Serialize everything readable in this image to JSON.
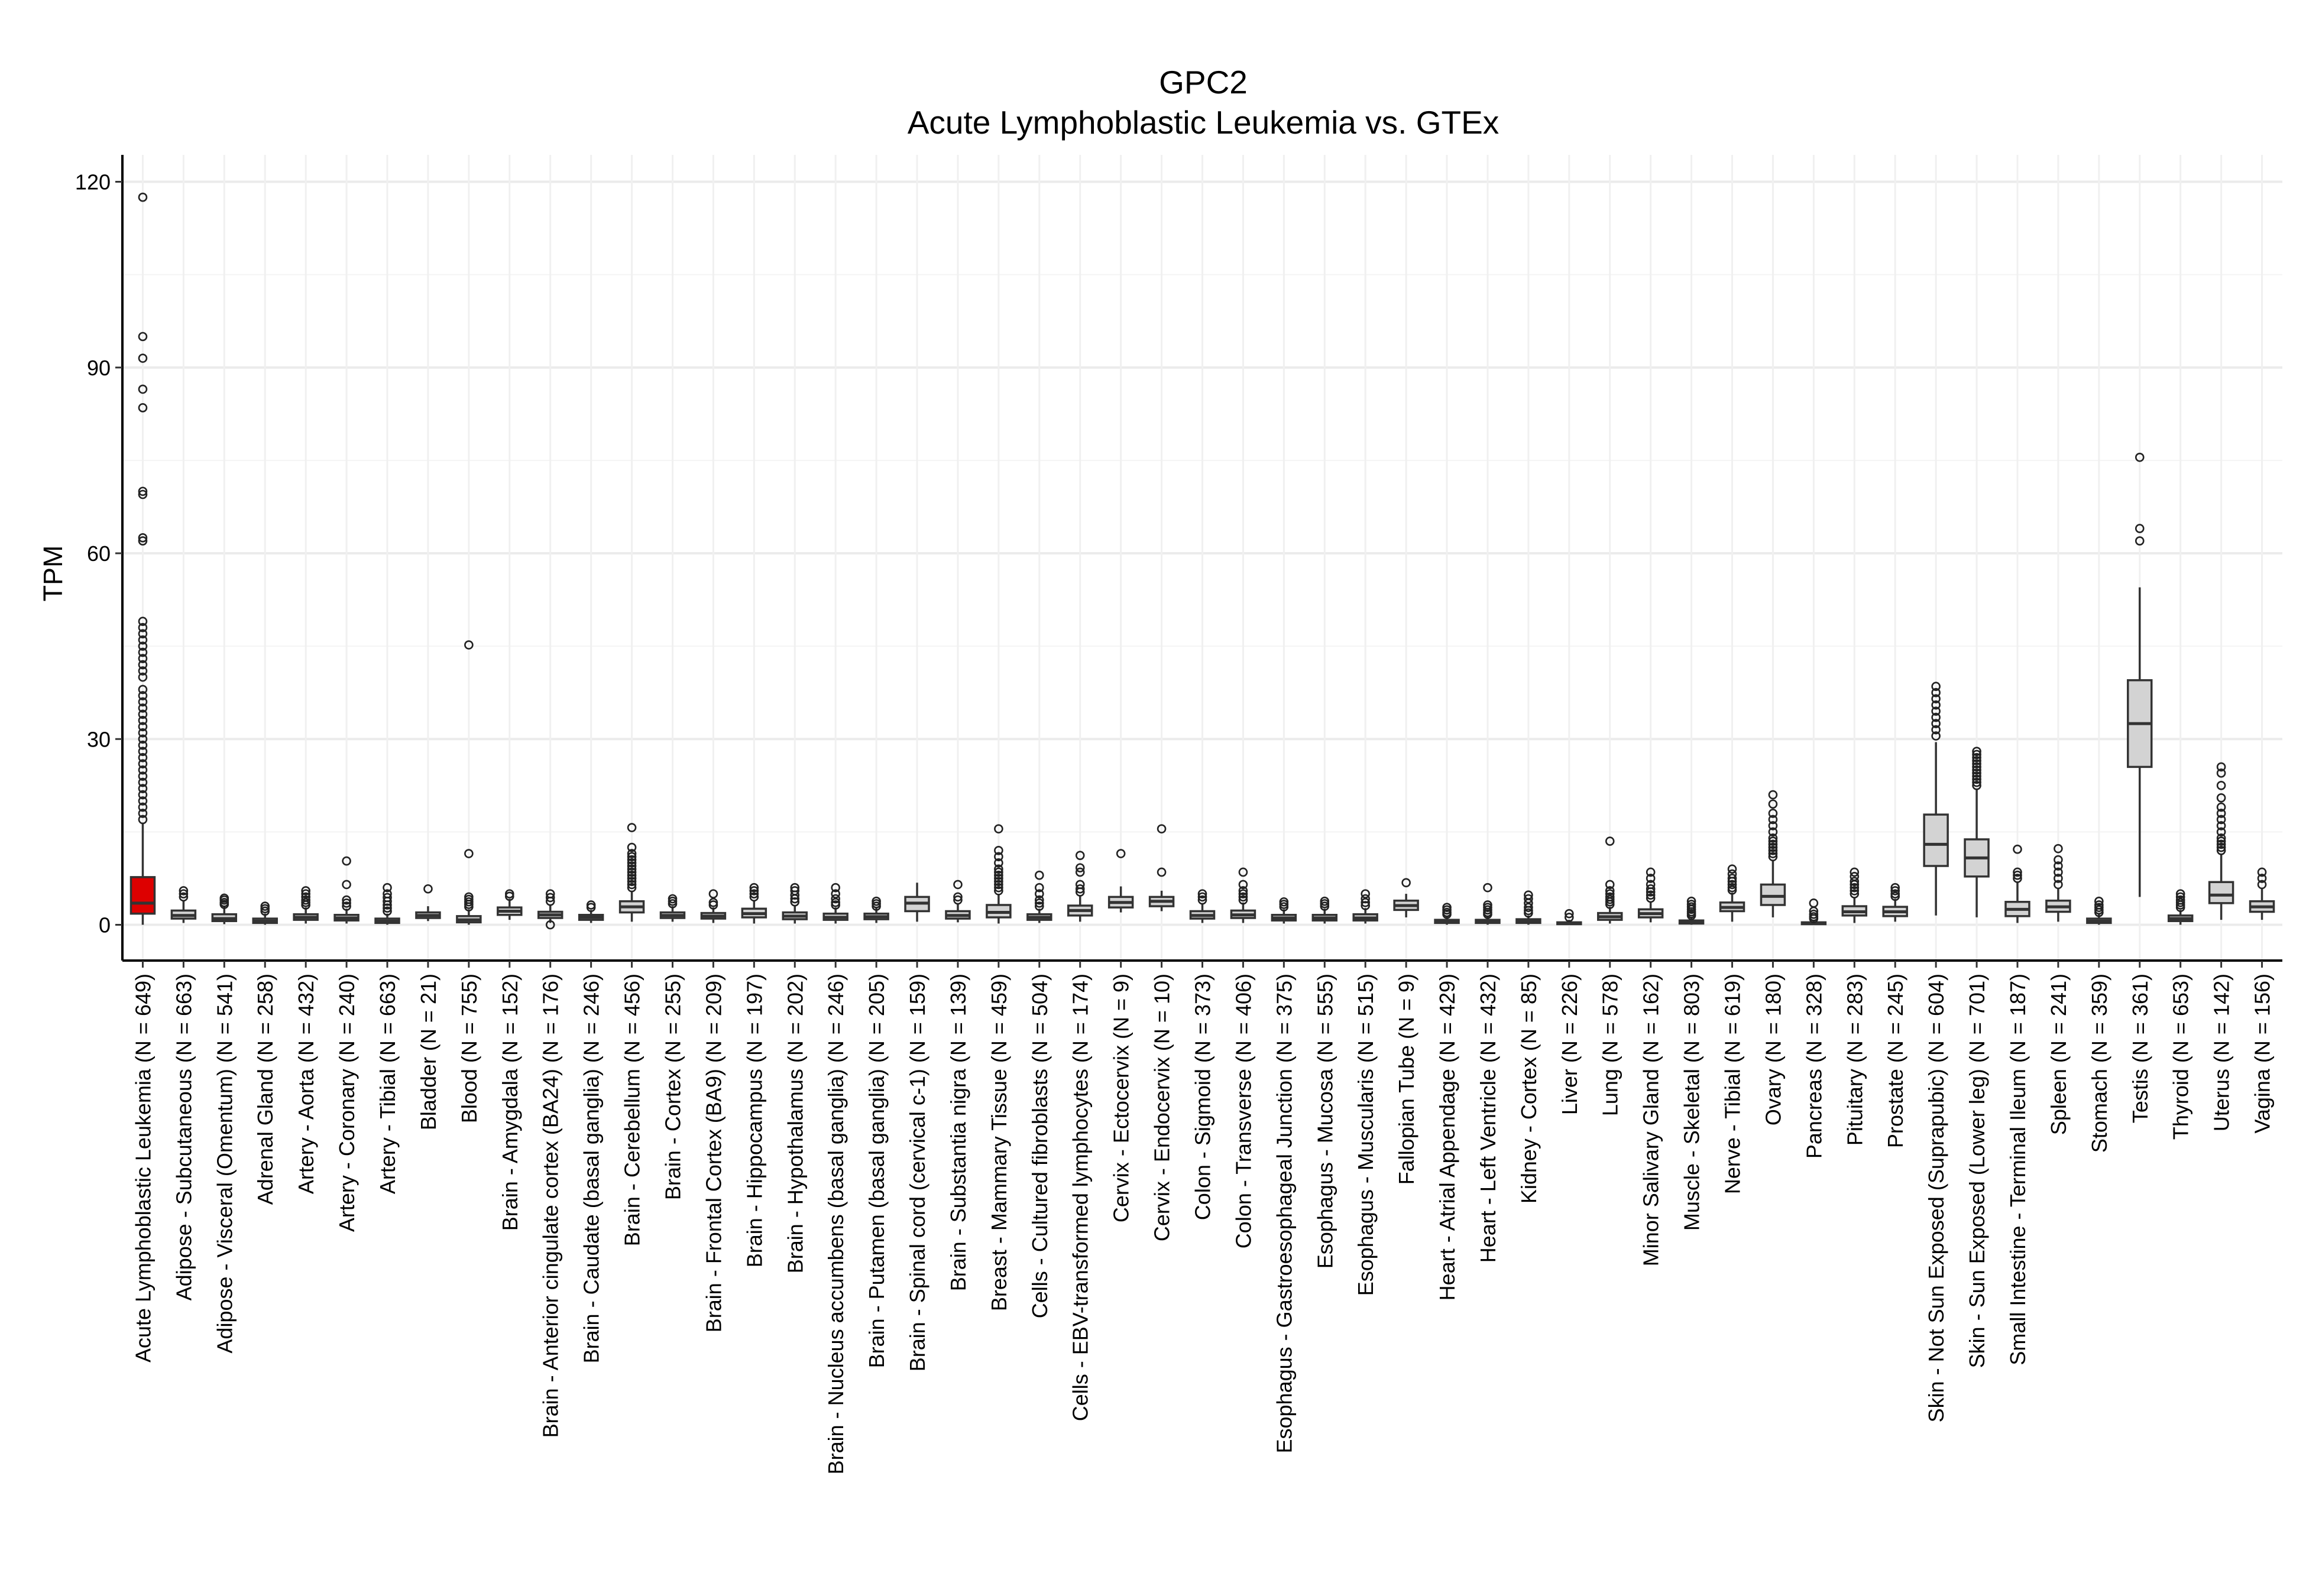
{
  "chart_data": {
    "type": "box",
    "title": "GPC2",
    "subtitle": "Acute Lymphoblastic Leukemia vs. GTEx",
    "ylabel": "TPM",
    "xlabel": "",
    "ylim": [
      -6,
      124
    ],
    "yticks": [
      0,
      30,
      60,
      90,
      120
    ],
    "grid": true,
    "highlight_color": "#dd0000",
    "box_color": "#d3d3d3",
    "categories": [
      "Acute Lymphoblastic Leukemia (N = 649)",
      "Adipose - Subcutaneous (N = 663)",
      "Adipose - Visceral (Omentum) (N = 541)",
      "Adrenal Gland (N = 258)",
      "Artery - Aorta (N = 432)",
      "Artery - Coronary (N = 240)",
      "Artery - Tibial (N = 663)",
      "Bladder (N = 21)",
      "Blood (N = 755)",
      "Brain - Amygdala (N = 152)",
      "Brain - Anterior cingulate cortex (BA24) (N = 176)",
      "Brain - Caudate (basal ganglia) (N = 246)",
      "Brain - Cerebellum (N = 456)",
      "Brain - Cortex (N = 255)",
      "Brain - Frontal Cortex (BA9) (N = 209)",
      "Brain - Hippocampus (N = 197)",
      "Brain - Hypothalamus (N = 202)",
      "Brain - Nucleus accumbens (basal ganglia) (N = 246)",
      "Brain - Putamen (basal ganglia) (N = 205)",
      "Brain - Spinal cord (cervical c-1) (N = 159)",
      "Brain - Substantia nigra (N = 139)",
      "Breast - Mammary Tissue (N = 459)",
      "Cells - Cultured fibroblasts (N = 504)",
      "Cells - EBV-transformed lymphocytes (N = 174)",
      "Cervix - Ectocervix (N = 9)",
      "Cervix - Endocervix (N = 10)",
      "Colon - Sigmoid (N = 373)",
      "Colon - Transverse (N = 406)",
      "Esophagus - Gastroesophageal Junction (N = 375)",
      "Esophagus - Mucosa (N = 555)",
      "Esophagus - Muscularis (N = 515)",
      "Fallopian Tube (N = 9)",
      "Heart - Atrial Appendage (N = 429)",
      "Heart - Left Ventricle (N = 432)",
      "Kidney - Cortex (N = 85)",
      "Liver (N = 226)",
      "Lung (N = 578)",
      "Minor Salivary Gland (N = 162)",
      "Muscle - Skeletal (N = 803)",
      "Nerve - Tibial (N = 619)",
      "Ovary (N = 180)",
      "Pancreas (N = 328)",
      "Pituitary (N = 283)",
      "Prostate (N = 245)",
      "Skin - Not Sun Exposed (Suprapubic) (N = 604)",
      "Skin - Sun Exposed (Lower leg) (N = 701)",
      "Small Intestine - Terminal Ileum (N = 187)",
      "Spleen (N = 241)",
      "Stomach (N = 359)",
      "Testis (N = 361)",
      "Thyroid (N = 653)",
      "Uterus (N = 142)",
      "Vagina (N = 156)"
    ],
    "boxes": [
      {
        "min": 0.0,
        "q1": 1.8,
        "median": 3.5,
        "q3": 7.7,
        "max": 16.5,
        "outliers": [
          17,
          18,
          19,
          20,
          21,
          22,
          23,
          24,
          25,
          26,
          27,
          28,
          29,
          30,
          31,
          32,
          33,
          34,
          35,
          36,
          37,
          38,
          40,
          41,
          42,
          43,
          44,
          45,
          46,
          47,
          48,
          49,
          62,
          62.5,
          69.5,
          70,
          83.5,
          86.5,
          91.5,
          95,
          117.5
        ],
        "highlight": true
      },
      {
        "min": 0.3,
        "q1": 1.0,
        "median": 1.5,
        "q3": 2.3,
        "max": 4.0,
        "outliers": [
          4.5,
          5.0,
          5.5
        ]
      },
      {
        "min": 0.1,
        "q1": 0.6,
        "median": 1.0,
        "q3": 1.7,
        "max": 3.0,
        "outliers": [
          3.3,
          3.6,
          4.0,
          4.3
        ]
      },
      {
        "min": 0.0,
        "q1": 0.3,
        "median": 0.6,
        "q3": 1.0,
        "max": 1.8,
        "outliers": [
          2.2,
          2.6,
          3.0
        ]
      },
      {
        "min": 0.2,
        "q1": 0.8,
        "median": 1.2,
        "q3": 1.7,
        "max": 2.8,
        "outliers": [
          3.2,
          3.6,
          4.0,
          4.5,
          5.0,
          5.5
        ]
      },
      {
        "min": 0.2,
        "q1": 0.7,
        "median": 1.1,
        "q3": 1.6,
        "max": 2.6,
        "outliers": [
          3.0,
          3.5,
          4.0,
          6.5,
          10.3
        ]
      },
      {
        "min": 0.0,
        "q1": 0.3,
        "median": 0.6,
        "q3": 1.0,
        "max": 1.8,
        "outliers": [
          2.2,
          2.7,
          3.2,
          3.8,
          4.4,
          5.0,
          6.0
        ]
      },
      {
        "min": 0.6,
        "q1": 1.1,
        "median": 1.5,
        "q3": 2.0,
        "max": 3.0,
        "outliers": [
          5.8
        ]
      },
      {
        "min": 0.0,
        "q1": 0.4,
        "median": 0.8,
        "q3": 1.4,
        "max": 2.5,
        "outliers": [
          2.9,
          3.3,
          3.7,
          4.1,
          4.5,
          11.5,
          45.2
        ]
      },
      {
        "min": 0.8,
        "q1": 1.6,
        "median": 2.2,
        "q3": 2.8,
        "max": 4.2,
        "outliers": [
          4.6,
          5.0
        ]
      },
      {
        "min": 0.3,
        "q1": 1.1,
        "median": 1.6,
        "q3": 2.1,
        "max": 3.2,
        "outliers": [
          0.0,
          3.8,
          4.4,
          5.0
        ]
      },
      {
        "min": 0.3,
        "q1": 0.8,
        "median": 1.2,
        "q3": 1.6,
        "max": 2.4,
        "outliers": [
          2.8,
          3.2
        ]
      },
      {
        "min": 0.5,
        "q1": 2.0,
        "median": 2.9,
        "q3": 3.8,
        "max": 5.5,
        "outliers": [
          6,
          6.5,
          7,
          7.5,
          8,
          8.5,
          9,
          9.5,
          10,
          10.5,
          11,
          11.5,
          12.5,
          15.7
        ]
      },
      {
        "min": 0.5,
        "q1": 1.1,
        "median": 1.5,
        "q3": 2.0,
        "max": 3.0,
        "outliers": [
          3.4,
          3.8,
          4.2
        ]
      },
      {
        "min": 0.3,
        "q1": 1.0,
        "median": 1.4,
        "q3": 1.9,
        "max": 2.8,
        "outliers": [
          3.2,
          3.6,
          5.0
        ]
      },
      {
        "min": 0.2,
        "q1": 1.2,
        "median": 1.8,
        "q3": 2.6,
        "max": 4.0,
        "outliers": [
          4.5,
          5.0,
          5.5,
          6.0
        ]
      },
      {
        "min": 0.2,
        "q1": 0.9,
        "median": 1.4,
        "q3": 2.0,
        "max": 3.2,
        "outliers": [
          3.7,
          4.2,
          4.8,
          5.5,
          6.0
        ]
      },
      {
        "min": 0.2,
        "q1": 0.8,
        "median": 1.2,
        "q3": 1.8,
        "max": 2.8,
        "outliers": [
          3.2,
          3.6,
          4.2,
          5.0,
          6.0
        ]
      },
      {
        "min": 0.3,
        "q1": 0.9,
        "median": 1.3,
        "q3": 1.8,
        "max": 2.7,
        "outliers": [
          3.0,
          3.4,
          3.8
        ]
      },
      {
        "min": 0.5,
        "q1": 2.2,
        "median": 3.5,
        "q3": 4.5,
        "max": 6.8,
        "outliers": []
      },
      {
        "min": 0.4,
        "q1": 1.0,
        "median": 1.5,
        "q3": 2.2,
        "max": 3.5,
        "outliers": [
          4.0,
          4.5,
          6.5
        ]
      },
      {
        "min": 0.2,
        "q1": 1.2,
        "median": 2.0,
        "q3": 3.2,
        "max": 5.0,
        "outliers": [
          5.5,
          6,
          6.5,
          7,
          7.5,
          8,
          8.5,
          9,
          10,
          11,
          12,
          15.5
        ]
      },
      {
        "min": 0.3,
        "q1": 0.8,
        "median": 1.2,
        "q3": 1.7,
        "max": 2.6,
        "outliers": [
          3.0,
          3.5,
          4.0,
          5.0,
          6.0,
          8.0
        ]
      },
      {
        "min": 0.5,
        "q1": 1.5,
        "median": 2.3,
        "q3": 3.1,
        "max": 4.8,
        "outliers": [
          5.3,
          5.8,
          6.5,
          8.5,
          9.2,
          11.2
        ]
      },
      {
        "min": 2.0,
        "q1": 2.8,
        "median": 3.6,
        "q3": 4.5,
        "max": 6.2,
        "outliers": [
          11.5
        ]
      },
      {
        "min": 2.2,
        "q1": 3.0,
        "median": 3.8,
        "q3": 4.5,
        "max": 5.5,
        "outliers": [
          8.5,
          15.5
        ]
      },
      {
        "min": 0.3,
        "q1": 1.0,
        "median": 1.5,
        "q3": 2.2,
        "max": 3.5,
        "outliers": [
          4.0,
          4.5,
          5.0
        ]
      },
      {
        "min": 0.3,
        "q1": 1.1,
        "median": 1.6,
        "q3": 2.3,
        "max": 3.6,
        "outliers": [
          4.0,
          4.5,
          5.0,
          5.5,
          6.5,
          8.5
        ]
      },
      {
        "min": 0.2,
        "q1": 0.7,
        "median": 1.1,
        "q3": 1.6,
        "max": 2.5,
        "outliers": [
          2.9,
          3.3,
          3.7
        ]
      },
      {
        "min": 0.2,
        "q1": 0.7,
        "median": 1.1,
        "q3": 1.6,
        "max": 2.6,
        "outliers": [
          3.0,
          3.4,
          3.8
        ]
      },
      {
        "min": 0.2,
        "q1": 0.7,
        "median": 1.1,
        "q3": 1.7,
        "max": 2.7,
        "outliers": [
          3.1,
          3.6,
          4.2,
          5.0
        ]
      },
      {
        "min": 1.2,
        "q1": 2.4,
        "median": 3.1,
        "q3": 3.9,
        "max": 5.0,
        "outliers": [
          6.8
        ]
      },
      {
        "min": 0.0,
        "q1": 0.3,
        "median": 0.5,
        "q3": 0.8,
        "max": 1.4,
        "outliers": [
          1.7,
          2.0,
          2.4,
          2.8
        ]
      },
      {
        "min": 0.0,
        "q1": 0.3,
        "median": 0.5,
        "q3": 0.8,
        "max": 1.4,
        "outliers": [
          1.7,
          2.0,
          2.4,
          2.8,
          3.2,
          6.0
        ]
      },
      {
        "min": 0.0,
        "q1": 0.3,
        "median": 0.6,
        "q3": 0.9,
        "max": 1.5,
        "outliers": [
          1.9,
          2.3,
          2.8,
          3.5,
          4.2,
          4.8
        ]
      },
      {
        "min": 0.0,
        "q1": 0.1,
        "median": 0.2,
        "q3": 0.4,
        "max": 0.8,
        "outliers": [
          1.2,
          1.8
        ]
      },
      {
        "min": 0.2,
        "q1": 0.8,
        "median": 1.3,
        "q3": 1.9,
        "max": 2.9,
        "outliers": [
          3.3,
          3.7,
          4.1,
          4.5,
          5.0,
          5.5,
          6.5,
          13.5
        ]
      },
      {
        "min": 0.4,
        "q1": 1.2,
        "median": 1.8,
        "q3": 2.5,
        "max": 3.8,
        "outliers": [
          4.3,
          4.8,
          5.3,
          5.8,
          6.5,
          7.5,
          8.5
        ]
      },
      {
        "min": 0.0,
        "q1": 0.2,
        "median": 0.4,
        "q3": 0.7,
        "max": 1.2,
        "outliers": [
          1.5,
          1.8,
          2.1,
          2.5,
          2.9,
          3.3,
          3.8
        ]
      },
      {
        "min": 0.5,
        "q1": 2.2,
        "median": 2.8,
        "q3": 3.6,
        "max": 5.2,
        "outliers": [
          5.6,
          6.0,
          6.5,
          7.0,
          7.5,
          8.2,
          9.0
        ]
      },
      {
        "min": 1.2,
        "q1": 3.2,
        "median": 4.6,
        "q3": 6.5,
        "max": 10.5,
        "outliers": [
          11,
          11.5,
          12,
          12.5,
          13,
          13.5,
          14,
          15,
          16,
          17,
          18,
          19.5,
          21
        ]
      },
      {
        "min": 0.0,
        "q1": 0.1,
        "median": 0.2,
        "q3": 0.4,
        "max": 0.8,
        "outliers": [
          1.0,
          1.3,
          1.7,
          2.2,
          3.5
        ]
      },
      {
        "min": 0.3,
        "q1": 1.5,
        "median": 2.1,
        "q3": 3.0,
        "max": 4.5,
        "outliers": [
          5.0,
          5.5,
          6.0,
          6.5,
          7.0,
          7.8,
          8.5
        ]
      },
      {
        "min": 0.5,
        "q1": 1.4,
        "median": 2.1,
        "q3": 2.9,
        "max": 4.2,
        "outliers": [
          4.6,
          5.0,
          5.5,
          6.0
        ]
      },
      {
        "min": 1.5,
        "q1": 9.5,
        "median": 13.0,
        "q3": 17.8,
        "max": 29.5,
        "outliers": [
          30.5,
          31.5,
          32.5,
          33.5,
          34.5,
          35.5,
          36.5,
          37.5,
          38.5
        ]
      },
      {
        "min": 1.2,
        "q1": 7.8,
        "median": 10.8,
        "q3": 13.8,
        "max": 22.0,
        "outliers": [
          22.5,
          23,
          23.5,
          24,
          24.5,
          25,
          25.5,
          26,
          26.5,
          27,
          27.5,
          28
        ]
      },
      {
        "min": 0.3,
        "q1": 1.4,
        "median": 2.5,
        "q3": 3.7,
        "max": 7.0,
        "outliers": [
          7.5,
          8.0,
          8.5,
          12.2
        ]
      },
      {
        "min": 0.5,
        "q1": 2.1,
        "median": 2.9,
        "q3": 3.9,
        "max": 5.8,
        "outliers": [
          6.5,
          7.5,
          8.5,
          9.5,
          10.5,
          12.3
        ]
      },
      {
        "min": 0.0,
        "q1": 0.3,
        "median": 0.6,
        "q3": 1.0,
        "max": 1.7,
        "outliers": [
          2.0,
          2.4,
          2.8,
          3.2,
          3.8
        ]
      },
      {
        "min": 4.5,
        "q1": 25.5,
        "median": 32.5,
        "q3": 39.5,
        "max": 54.5,
        "outliers": [
          62,
          64,
          75.5
        ]
      },
      {
        "min": 0.0,
        "q1": 0.6,
        "median": 1.0,
        "q3": 1.5,
        "max": 2.4,
        "outliers": [
          2.8,
          3.2,
          3.6,
          4.0,
          4.5,
          5.0
        ]
      },
      {
        "min": 0.8,
        "q1": 3.5,
        "median": 4.8,
        "q3": 6.9,
        "max": 11.5,
        "outliers": [
          12,
          12.5,
          13,
          13.5,
          14,
          15,
          16,
          17,
          18,
          19,
          20.5,
          22.5,
          24.5,
          25.5
        ]
      },
      {
        "min": 0.8,
        "q1": 2.1,
        "median": 2.9,
        "q3": 3.8,
        "max": 6.0,
        "outliers": [
          6.5,
          7.5,
          8.5
        ]
      }
    ]
  }
}
